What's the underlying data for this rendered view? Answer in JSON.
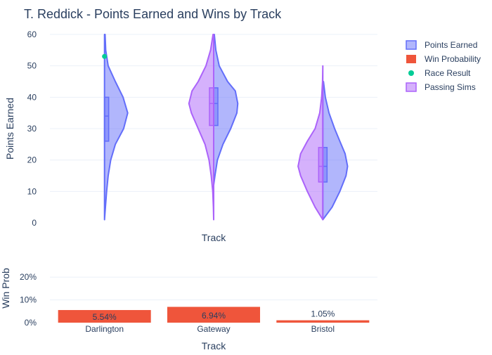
{
  "chart_data": {
    "title": "T. Reddick - Points Earned and Wins by Track",
    "legend": {
      "placement": "top-right",
      "entries": [
        {
          "label": "Points Earned",
          "symbol": "violin",
          "color": "#636efa"
        },
        {
          "label": "Win Probability",
          "symbol": "bar",
          "color": "#ef553b"
        },
        {
          "label": "Race Result",
          "symbol": "marker",
          "color": "#00cc96"
        },
        {
          "label": "Passing Sims",
          "symbol": "violin",
          "color": "#ab63fa"
        }
      ]
    },
    "tracks": [
      "Darlington",
      "Gateway",
      "Bristol"
    ],
    "top_panel": {
      "type": "violin",
      "xlabel": "Track",
      "ylabel": "Points Earned",
      "ylim": [
        0,
        60
      ],
      "yticks": [
        0,
        10,
        20,
        30,
        40,
        50,
        60
      ],
      "series": [
        {
          "name": "Points Earned",
          "color": "#636efa",
          "side": "positive",
          "violins": [
            {
              "track": "Darlington",
              "q1": 26,
              "median": 34,
              "q3": 40,
              "density": [
                [
                  1,
                  0.0
                ],
                [
                  5,
                  0.03
                ],
                [
                  10,
                  0.07
                ],
                [
                  15,
                  0.12
                ],
                [
                  20,
                  0.2
                ],
                [
                  25,
                  0.35
                ],
                [
                  30,
                  0.62
                ],
                [
                  35,
                  0.75
                ],
                [
                  40,
                  0.6
                ],
                [
                  45,
                  0.35
                ],
                [
                  50,
                  0.12
                ],
                [
                  55,
                  0.04
                ],
                [
                  60,
                  0.02
                ]
              ]
            },
            {
              "track": "Gateway",
              "q1": 31,
              "median": 38,
              "q3": 43,
              "density": [
                [
                  12,
                  0.0
                ],
                [
                  15,
                  0.04
                ],
                [
                  20,
                  0.12
                ],
                [
                  25,
                  0.3
                ],
                [
                  30,
                  0.55
                ],
                [
                  35,
                  0.75
                ],
                [
                  38,
                  0.78
                ],
                [
                  42,
                  0.7
                ],
                [
                  45,
                  0.45
                ],
                [
                  50,
                  0.18
                ],
                [
                  55,
                  0.07
                ],
                [
                  60,
                  0.02
                ]
              ]
            },
            {
              "track": "Bristol",
              "q1": 13,
              "median": 18,
              "q3": 24,
              "density": [
                [
                  1,
                  0.0
                ],
                [
                  5,
                  0.3
                ],
                [
                  10,
                  0.55
                ],
                [
                  15,
                  0.75
                ],
                [
                  18,
                  0.8
                ],
                [
                  22,
                  0.72
                ],
                [
                  26,
                  0.55
                ],
                [
                  30,
                  0.38
                ],
                [
                  35,
                  0.2
                ],
                [
                  40,
                  0.08
                ],
                [
                  45,
                  0.02
                ]
              ]
            }
          ]
        },
        {
          "name": "Passing Sims",
          "color": "#ab63fa",
          "side": "negative",
          "violins": [
            {
              "track": "Gateway",
              "q1": 31,
              "median": 38,
              "q3": 43,
              "density": [
                [
                  1,
                  0.0
                ],
                [
                  5,
                  0.01
                ],
                [
                  10,
                  0.03
                ],
                [
                  15,
                  0.08
                ],
                [
                  20,
                  0.15
                ],
                [
                  25,
                  0.28
                ],
                [
                  30,
                  0.5
                ],
                [
                  35,
                  0.72
                ],
                [
                  38,
                  0.8
                ],
                [
                  42,
                  0.7
                ],
                [
                  45,
                  0.5
                ],
                [
                  50,
                  0.25
                ],
                [
                  55,
                  0.1
                ],
                [
                  60,
                  0.02
                ]
              ]
            },
            {
              "track": "Bristol",
              "q1": 13,
              "median": 18,
              "q3": 24,
              "density": [
                [
                  1,
                  0.0
                ],
                [
                  5,
                  0.25
                ],
                [
                  10,
                  0.5
                ],
                [
                  15,
                  0.72
                ],
                [
                  18,
                  0.8
                ],
                [
                  22,
                  0.72
                ],
                [
                  26,
                  0.5
                ],
                [
                  30,
                  0.25
                ],
                [
                  35,
                  0.1
                ],
                [
                  40,
                  0.04
                ],
                [
                  45,
                  0.01
                ],
                [
                  50,
                  0.0
                ]
              ]
            }
          ]
        },
        {
          "name": "Race Result",
          "color": "#00cc96",
          "points": [
            {
              "track": "Darlington",
              "value": 53
            }
          ]
        }
      ]
    },
    "bottom_panel": {
      "type": "bar",
      "xlabel": "Track",
      "ylabel": "Win Prob",
      "ylim": [
        0,
        0.25
      ],
      "yticks": [
        0,
        0.1,
        0.2
      ],
      "ytick_labels": [
        "0%",
        "10%",
        "20%"
      ],
      "series": [
        {
          "name": "Win Probability",
          "color": "#ef553b",
          "categories": [
            "Darlington",
            "Gateway",
            "Bristol"
          ],
          "values": [
            0.0554,
            0.0694,
            0.0105
          ],
          "labels": [
            "5.54%",
            "6.94%",
            "1.05%"
          ]
        }
      ]
    }
  }
}
